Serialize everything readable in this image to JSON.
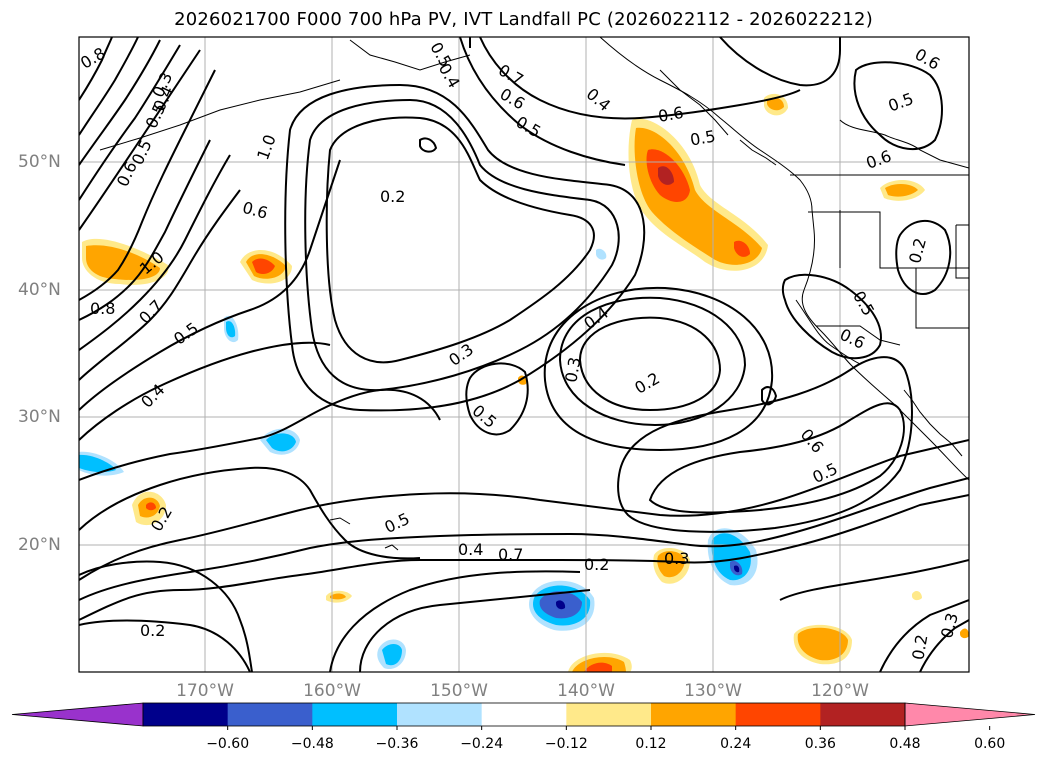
{
  "title": "2026021700 F000 700 hPa PV, IVT Landfall PC (2026022112 - 2026022212)",
  "lat_labels": [
    "50°N",
    "40°N",
    "30°N",
    "20°N"
  ],
  "lon_labels": [
    "170°W",
    "160°W",
    "150°W",
    "140°W",
    "130°W",
    "120°W"
  ],
  "colorbar": {
    "ticks": [
      "−0.60",
      "−0.48",
      "−0.36",
      "−0.24",
      "−0.12",
      "0.12",
      "0.24",
      "0.36",
      "0.48",
      "0.60"
    ],
    "colors": [
      "#9932cc",
      "#00008b",
      "#3a5fcd",
      "#00bfff",
      "#b0e2ff",
      "#ffffff",
      "#ffe98a",
      "#ffa500",
      "#ff4500",
      "#b22222",
      "#ff88aa"
    ]
  },
  "contour_labels": [
    "0.2",
    "0.3",
    "0.4",
    "0.5",
    "0.6",
    "0.7",
    "0.8",
    "1.0",
    "1.0",
    "0.2",
    "0.4",
    "0.5",
    "0.6",
    "0.3",
    "0.2",
    "0.3",
    "0.5",
    "0.4",
    "0.5",
    "0.2",
    "0.2",
    "0.3",
    "0.6",
    "0.5",
    "0.6",
    "0.5",
    "0.6",
    "0.5",
    "0.2",
    "0.6",
    "0.4",
    "0.5",
    "0.7",
    "0.6",
    "0.5",
    "0.4",
    "0.6",
    "0.5",
    "0.7",
    "0.8",
    "0.5",
    "0.4",
    "0.2",
    "0.3"
  ]
}
